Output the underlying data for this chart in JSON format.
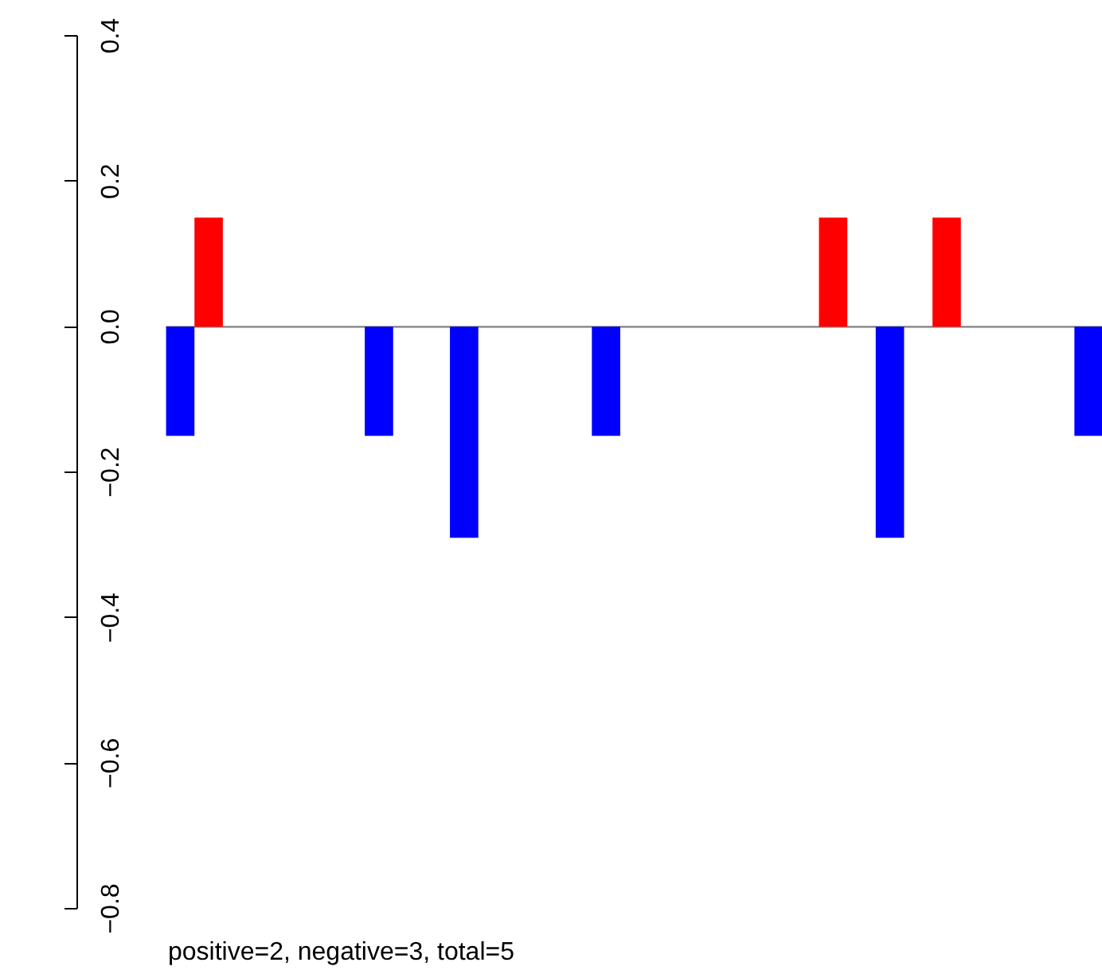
{
  "chart_data": {
    "type": "bar",
    "categories": [
      null,
      null,
      null,
      null,
      null,
      null,
      null,
      null,
      null,
      null,
      null,
      null,
      null,
      null,
      null,
      null,
      null,
      null,
      null,
      null,
      null,
      null,
      null,
      null,
      null,
      null,
      null,
      null,
      null,
      null,
      null,
      null,
      null
    ],
    "values": [
      -0.15,
      0.15,
      null,
      null,
      null,
      null,
      null,
      -0.15,
      null,
      null,
      -0.29,
      null,
      null,
      null,
      null,
      -0.15,
      null,
      null,
      null,
      null,
      null,
      null,
      null,
      0.15,
      null,
      -0.29,
      null,
      0.15,
      null,
      null,
      null,
      null,
      -0.15
    ],
    "colors": [
      "#0000ff",
      "#ff0000",
      null,
      null,
      null,
      null,
      null,
      "#0000ff",
      null,
      null,
      "#0000ff",
      null,
      null,
      null,
      null,
      "#0000ff",
      null,
      null,
      null,
      null,
      null,
      null,
      null,
      "#ff0000",
      null,
      "#0000ff",
      null,
      "#ff0000",
      null,
      null,
      null,
      null,
      "#0000ff"
    ],
    "ylim": [
      -0.8,
      0.4
    ],
    "yticks": [
      {
        "value": -0.8,
        "label": "−0.8"
      },
      {
        "value": -0.6,
        "label": "−0.6"
      },
      {
        "value": -0.4,
        "label": "−0.4"
      },
      {
        "value": -0.2,
        "label": "−0.2"
      },
      {
        "value": 0,
        "label": "0.0"
      },
      {
        "value": 0.2,
        "label": "0.2"
      },
      {
        "value": 0.4,
        "label": "0.4"
      }
    ],
    "ref_lines": [
      {
        "axis": "y",
        "value": 0,
        "color": "#808080"
      }
    ],
    "tick_labels": "y",
    "grid": false,
    "annotations": [
      "positive=2, negative=3, total=5"
    ]
  }
}
